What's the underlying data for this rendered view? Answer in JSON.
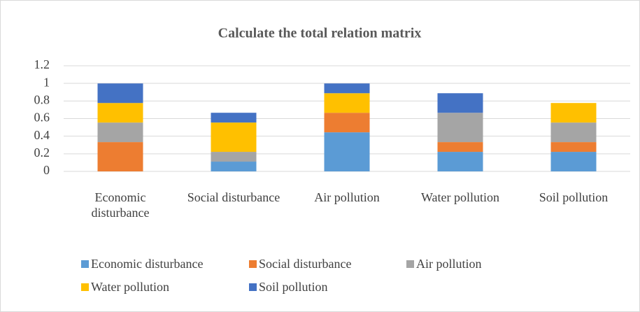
{
  "chart_data": {
    "type": "stacked_bar",
    "title": "Calculate the total relation matrix",
    "categories": [
      "Economic disturbance",
      "Social disturbance",
      "Air pollution",
      "Water pollution",
      "Soil pollution"
    ],
    "series": [
      {
        "name": "Economic disturbance",
        "color": "#5b9bd5",
        "values": [
          0,
          0.111,
          0.444,
          0.222,
          0.222
        ]
      },
      {
        "name": "Social disturbance",
        "color": "#ed7d31",
        "values": [
          0.333,
          0,
          0.222,
          0.111,
          0.111
        ]
      },
      {
        "name": "Air pollution",
        "color": "#a5a5a5",
        "values": [
          0.222,
          0.111,
          0,
          0.333,
          0.222
        ]
      },
      {
        "name": "Water pollution",
        "color": "#ffc000",
        "values": [
          0.222,
          0.333,
          0.222,
          0,
          0.222
        ]
      },
      {
        "name": "Soil pollution",
        "color": "#4472c4",
        "values": [
          0.222,
          0.111,
          0.111,
          0.222,
          0
        ]
      }
    ],
    "ylim": [
      0,
      1.2
    ],
    "yticks": [
      0,
      0.2,
      0.4,
      0.6,
      0.8,
      1,
      1.2
    ],
    "grid": true,
    "legend": "bottom"
  }
}
